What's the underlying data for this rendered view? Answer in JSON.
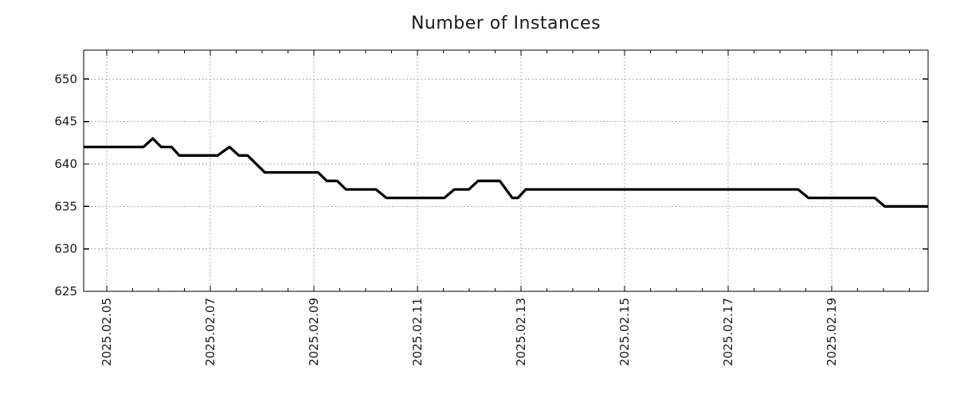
{
  "chart_data": {
    "type": "line",
    "title": "Number of Instances",
    "legend": "none",
    "grid": true,
    "colors": {
      "line": "#000000",
      "grid": "#a8a8a8",
      "axis": "#000000",
      "text": "#1a1a1a",
      "background": "#ffffff"
    },
    "x_axis": {
      "note": "time axis; positions are days relative to 2025-02-05 00:00",
      "tick_labels": [
        "2025.02.05",
        "2025.02.07",
        "2025.02.09",
        "2025.02.11",
        "2025.02.13",
        "2025.02.15",
        "2025.02.17",
        "2025.02.19"
      ],
      "tick_positions_days": [
        0,
        2,
        4,
        6,
        8,
        10,
        12,
        14
      ],
      "minor_tick_step_days": 0.5,
      "range_days": [
        -0.446,
        15.86
      ]
    },
    "y_axis": {
      "tick_labels": [
        "625",
        "630",
        "635",
        "640",
        "645",
        "650"
      ],
      "tick_values": [
        625,
        630,
        635,
        640,
        645,
        650
      ],
      "range": [
        625,
        653.4
      ]
    },
    "series": [
      {
        "name": "instances",
        "color": "#000000",
        "points_t_days_value": [
          [
            -0.45,
            642
          ],
          [
            0.71,
            642
          ],
          [
            0.89,
            643
          ],
          [
            1.05,
            642
          ],
          [
            1.25,
            642
          ],
          [
            1.4,
            641
          ],
          [
            2.14,
            641
          ],
          [
            2.37,
            642
          ],
          [
            2.55,
            641
          ],
          [
            2.72,
            641
          ],
          [
            3.05,
            639
          ],
          [
            4.08,
            639
          ],
          [
            4.25,
            638
          ],
          [
            4.45,
            638
          ],
          [
            4.62,
            637
          ],
          [
            5.2,
            637
          ],
          [
            5.4,
            636
          ],
          [
            6.52,
            636
          ],
          [
            6.71,
            637
          ],
          [
            6.99,
            637
          ],
          [
            7.17,
            638
          ],
          [
            7.59,
            638
          ],
          [
            7.83,
            636
          ],
          [
            7.94,
            636
          ],
          [
            8.09,
            637
          ],
          [
            13.35,
            637
          ],
          [
            13.55,
            636
          ],
          [
            14.83,
            636
          ],
          [
            15.02,
            635
          ],
          [
            15.86,
            635
          ]
        ]
      }
    ]
  }
}
